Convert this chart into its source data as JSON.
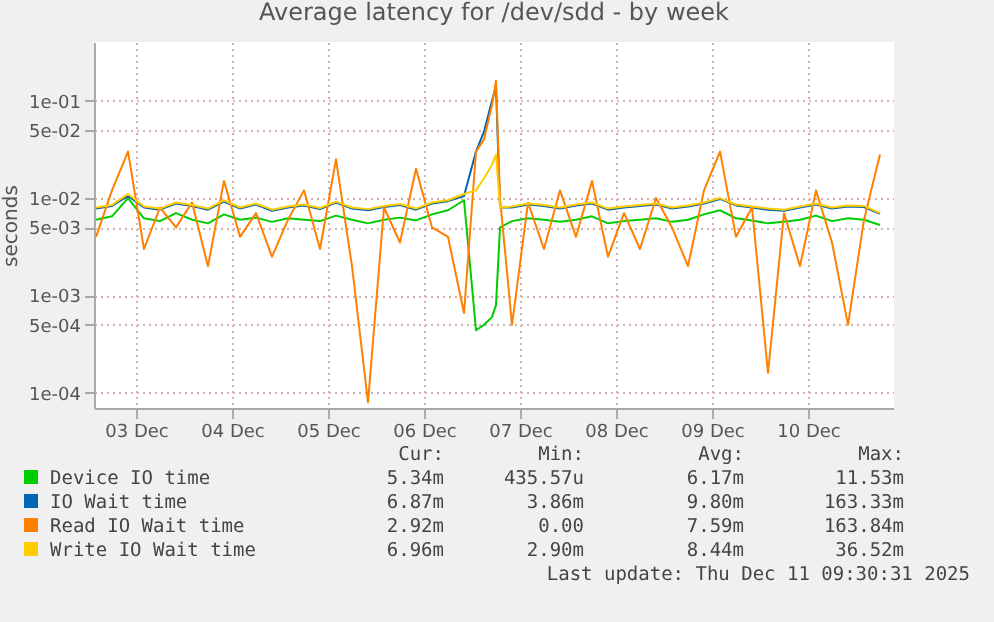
{
  "chart_data": {
    "type": "line",
    "title": "Average latency for /dev/sdd - by week",
    "ylabel": "seconds",
    "log": "y",
    "grid": true,
    "legend": "bottom",
    "xlim": [
      "2025-12-03T01:30",
      "2025-12-11T09:30"
    ],
    "xticks": [
      {
        "value": "2025-12-03T12:00",
        "label": "03 Dec"
      },
      {
        "value": "2025-12-04T12:00",
        "label": "04 Dec"
      },
      {
        "value": "2025-12-05T12:00",
        "label": "05 Dec"
      },
      {
        "value": "2025-12-06T12:00",
        "label": "06 Dec"
      },
      {
        "value": "2025-12-07T12:00",
        "label": "07 Dec"
      },
      {
        "value": "2025-12-08T12:00",
        "label": "08 Dec"
      },
      {
        "value": "2025-12-09T12:00",
        "label": "09 Dec"
      },
      {
        "value": "2025-12-10T12:00",
        "label": "10 Dec"
      }
    ],
    "ylim": [
      7e-05,
      0.4
    ],
    "yticks": [
      {
        "value": 0.1,
        "label": "1e-01"
      },
      {
        "value": 0.05,
        "label": "5e-02"
      },
      {
        "value": 0.01,
        "label": "1e-02"
      },
      {
        "value": 0.005,
        "label": "5e-03"
      },
      {
        "value": 0.001,
        "label": "1e-03"
      },
      {
        "value": 0.0005,
        "label": "5e-04"
      },
      {
        "value": 0.0001,
        "label": "1e-04"
      }
    ],
    "x": [
      "2025-12-03T02:00",
      "2025-12-03T06:00",
      "2025-12-03T10:00",
      "2025-12-03T14:00",
      "2025-12-03T18:00",
      "2025-12-03T22:00",
      "2025-12-04T02:00",
      "2025-12-04T06:00",
      "2025-12-04T10:00",
      "2025-12-04T14:00",
      "2025-12-04T18:00",
      "2025-12-04T22:00",
      "2025-12-05T02:00",
      "2025-12-05T06:00",
      "2025-12-05T10:00",
      "2025-12-05T14:00",
      "2025-12-05T18:00",
      "2025-12-05T22:00",
      "2025-12-06T02:00",
      "2025-12-06T06:00",
      "2025-12-06T10:00",
      "2025-12-06T14:00",
      "2025-12-06T18:00",
      "2025-12-06T22:00",
      "2025-12-07T01:00",
      "2025-12-07T03:00",
      "2025-12-07T05:00",
      "2025-12-07T06:00",
      "2025-12-07T07:00",
      "2025-12-07T10:00",
      "2025-12-07T14:00",
      "2025-12-07T18:00",
      "2025-12-07T22:00",
      "2025-12-08T02:00",
      "2025-12-08T06:00",
      "2025-12-08T10:00",
      "2025-12-08T14:00",
      "2025-12-08T18:00",
      "2025-12-08T22:00",
      "2025-12-09T02:00",
      "2025-12-09T06:00",
      "2025-12-09T10:00",
      "2025-12-09T14:00",
      "2025-12-09T18:00",
      "2025-12-09T22:00",
      "2025-12-10T02:00",
      "2025-12-10T06:00",
      "2025-12-10T10:00",
      "2025-12-10T14:00",
      "2025-12-10T18:00",
      "2025-12-10T22:00",
      "2025-12-11T02:00",
      "2025-12-11T06:00"
    ],
    "series": [
      {
        "name": "Device IO time",
        "color": "#00cc00",
        "values": [
          0.006,
          0.0065,
          0.01,
          0.0062,
          0.0058,
          0.007,
          0.006,
          0.0055,
          0.0068,
          0.006,
          0.0063,
          0.0057,
          0.0062,
          0.006,
          0.0058,
          0.0066,
          0.006,
          0.0055,
          0.006,
          0.0063,
          0.0059,
          0.0068,
          0.0075,
          0.0095,
          0.00044,
          0.0005,
          0.0006,
          0.0008,
          0.005,
          0.0058,
          0.0062,
          0.006,
          0.0057,
          0.006,
          0.0065,
          0.0055,
          0.0058,
          0.006,
          0.0062,
          0.0057,
          0.006,
          0.0068,
          0.0075,
          0.0062,
          0.0059,
          0.0055,
          0.0057,
          0.006,
          0.0066,
          0.0058,
          0.0062,
          0.006,
          0.0053
        ]
      },
      {
        "name": "IO Wait time",
        "color": "#0066b3",
        "values": [
          0.0078,
          0.0083,
          0.0105,
          0.008,
          0.0076,
          0.0088,
          0.0083,
          0.0076,
          0.0092,
          0.0078,
          0.0086,
          0.0074,
          0.008,
          0.0084,
          0.0077,
          0.009,
          0.0078,
          0.0075,
          0.0081,
          0.0085,
          0.0076,
          0.0088,
          0.0093,
          0.0105,
          0.03,
          0.048,
          0.1,
          0.14,
          0.008,
          0.008,
          0.0086,
          0.0083,
          0.0078,
          0.0084,
          0.0088,
          0.0076,
          0.008,
          0.0083,
          0.0086,
          0.0078,
          0.0082,
          0.0088,
          0.0098,
          0.0084,
          0.008,
          0.0076,
          0.0074,
          0.008,
          0.0086,
          0.0078,
          0.0082,
          0.0081,
          0.0069
        ]
      },
      {
        "name": "Read IO Wait time",
        "color": "#ff8000",
        "values": [
          0.004,
          0.012,
          0.03,
          0.003,
          0.008,
          0.005,
          0.009,
          0.002,
          0.015,
          0.004,
          0.007,
          0.0025,
          0.006,
          0.012,
          0.003,
          0.025,
          0.002,
          8e-05,
          0.008,
          0.0035,
          0.02,
          0.005,
          0.004,
          0.00066,
          0.03,
          0.04,
          0.09,
          0.16,
          0.01,
          0.0005,
          0.009,
          0.003,
          0.012,
          0.004,
          0.015,
          0.0025,
          0.007,
          0.003,
          0.01,
          0.005,
          0.002,
          0.012,
          0.03,
          0.004,
          0.008,
          0.00016,
          0.007,
          0.002,
          0.012,
          0.0035,
          0.0005,
          0.006,
          0.028
        ]
      },
      {
        "name": "Write IO Wait time",
        "color": "#ffcc00",
        "values": [
          0.008,
          0.0085,
          0.011,
          0.0082,
          0.0078,
          0.009,
          0.0085,
          0.0078,
          0.0095,
          0.008,
          0.0088,
          0.0076,
          0.0082,
          0.0086,
          0.0079,
          0.0092,
          0.008,
          0.0077,
          0.0083,
          0.0087,
          0.0078,
          0.009,
          0.0095,
          0.011,
          0.012,
          0.016,
          0.022,
          0.028,
          0.008,
          0.0082,
          0.0088,
          0.0085,
          0.008,
          0.0086,
          0.009,
          0.0078,
          0.0082,
          0.0085,
          0.0088,
          0.008,
          0.0084,
          0.009,
          0.01,
          0.0086,
          0.0082,
          0.0078,
          0.0076,
          0.0082,
          0.0088,
          0.008,
          0.0084,
          0.0083,
          0.007
        ]
      }
    ],
    "annotations": [
      "Cur:",
      "Min:",
      "Avg:",
      "Max:",
      "5.34m",
      "435.57u",
      "6.17m",
      "11.53m",
      "6.87m",
      "3.86m",
      "9.80m",
      "163.33m",
      "2.92m",
      "0.00",
      "7.59m",
      "163.84m",
      "6.96m",
      "2.90m",
      "8.44m",
      "36.52m",
      "Last update: Thu Dec 11 09:30:31 2025"
    ]
  }
}
